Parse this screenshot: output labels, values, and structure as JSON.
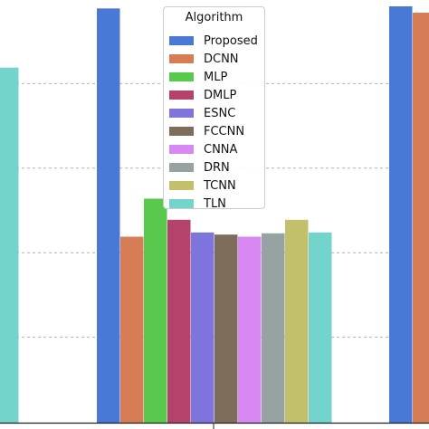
{
  "chart_data": {
    "type": "bar",
    "categories": [
      "",
      "",
      ""
    ],
    "legend_title": "Algorithm",
    "legend_placement": "top-center",
    "grid": true,
    "ylim": [
      0,
      100
    ],
    "series": [
      {
        "name": "Proposed",
        "color": "#4a78d6",
        "values": [
          null,
          98,
          98.5
        ]
      },
      {
        "name": "DCNN",
        "color": "#d77d55",
        "values": [
          null,
          44,
          97
        ]
      },
      {
        "name": "MLP",
        "color": "#58c94c",
        "values": [
          null,
          53,
          null
        ]
      },
      {
        "name": "DMLP",
        "color": "#b5426a",
        "values": [
          null,
          48,
          null
        ]
      },
      {
        "name": "ESNC",
        "color": "#7e74dc",
        "values": [
          null,
          45,
          null
        ]
      },
      {
        "name": "FCCNN",
        "color": "#7f6d5c",
        "values": [
          null,
          44.5,
          null
        ]
      },
      {
        "name": "CNNA",
        "color": "#d888f2",
        "values": [
          null,
          44,
          null
        ]
      },
      {
        "name": "DRN",
        "color": "#97a3a2",
        "values": [
          null,
          44.8,
          null
        ]
      },
      {
        "name": "TCNN",
        "color": "#c3c06c",
        "values": [
          81,
          48,
          null
        ]
      },
      {
        "name": "TLN",
        "color": "#72d4cd",
        "values": [
          84,
          45,
          null
        ]
      }
    ]
  }
}
